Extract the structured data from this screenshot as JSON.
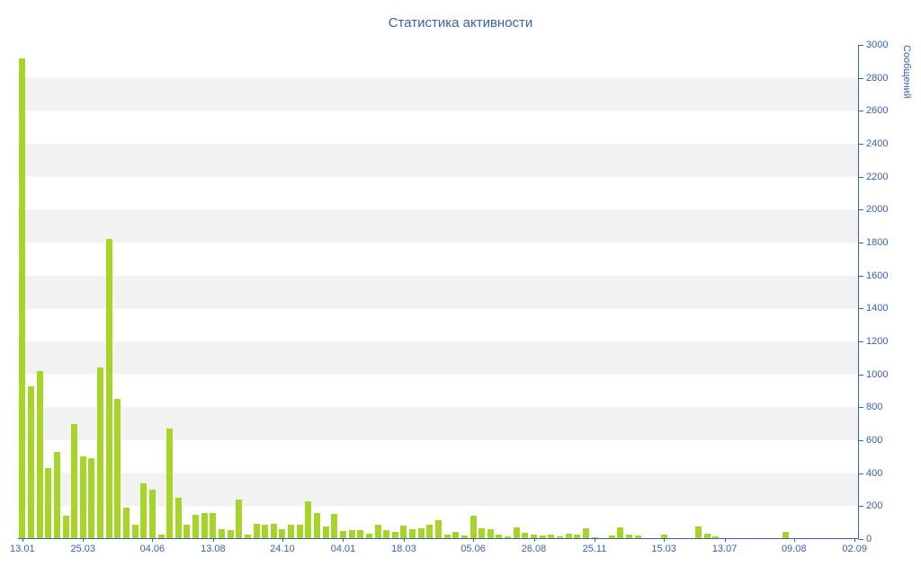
{
  "chart_data": {
    "type": "bar",
    "title": "Статистика активности",
    "xlabel": "",
    "ylabel": "Сообщений",
    "ylim": [
      0,
      3000
    ],
    "y_tick_step": 200,
    "y_ticks": [
      0,
      200,
      400,
      600,
      800,
      1000,
      1200,
      1400,
      1600,
      1800,
      2000,
      2200,
      2400,
      2600,
      2800,
      3000
    ],
    "x_tick_labels": [
      "13.01",
      "25.03",
      "04.06",
      "13.08",
      "24.10",
      "04.01",
      "18.03",
      "05.06",
      "26.08",
      "25.11",
      "15.03",
      "13.07",
      "09.08",
      "02.09"
    ],
    "x_tick_indices": [
      0,
      7,
      15,
      22,
      30,
      37,
      44,
      52,
      59,
      66,
      74,
      81,
      89,
      96
    ],
    "values": [
      2920,
      930,
      1020,
      430,
      530,
      140,
      700,
      500,
      490,
      1040,
      1820,
      850,
      190,
      90,
      340,
      300,
      30,
      670,
      250,
      90,
      150,
      160,
      160,
      60,
      55,
      240,
      30,
      95,
      85,
      95,
      60,
      90,
      90,
      230,
      160,
      75,
      155,
      50,
      55,
      55,
      35,
      90,
      55,
      45,
      80,
      60,
      65,
      90,
      115,
      30,
      45,
      20,
      140,
      65,
      60,
      25,
      15,
      70,
      40,
      30,
      20,
      25,
      15,
      35,
      30,
      65,
      10,
      5,
      20,
      70,
      25,
      20,
      8,
      5,
      30,
      8,
      5,
      5,
      75,
      35,
      15,
      8,
      5,
      5,
      5,
      8,
      5,
      5,
      45,
      5,
      5,
      8,
      5,
      5,
      5,
      8,
      5
    ],
    "grid": "horizontal-bands",
    "legend": "none",
    "colors": {
      "bar": "#a6d428",
      "text": "#3a62a8",
      "axis": "#3a62a8",
      "stripe": "#f2f2f2",
      "background": "#ffffff"
    }
  }
}
